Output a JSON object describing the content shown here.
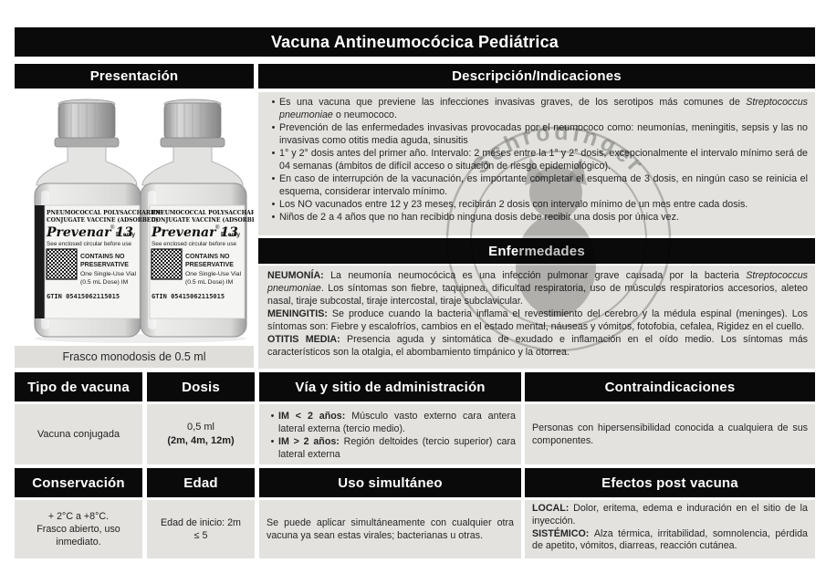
{
  "title": "Vacuna Antineumocócica Pediátrica",
  "presentation": {
    "header": "Presentación",
    "caption": "Frasco monodosis de 0.5 ml",
    "vial_label": {
      "line1": "PNEUMOCOCCAL POLYSACCHARIDE",
      "line2": "CONJUGATE VACCINE (ADSORBED)",
      "brand": "Prevenar 13",
      "reg": "®",
      "rx": "℞ only",
      "circular": "See enclosed circular before use",
      "contains1": "CONTAINS NO",
      "contains2": "PRESERVATIVE",
      "single_use": "One Single-Use Vial",
      "dose": "(0.5 mL Dose) IM",
      "gtin": "GTIN 05415062115015"
    }
  },
  "description": {
    "header": "Descripción/Indicaciones",
    "bullets": [
      [
        {
          "t": "Es una vacuna que previene las infecciones invasivas graves, de los serotipos más comunes de "
        },
        {
          "t": "Streptococcus pneumoniae",
          "i": true
        },
        {
          "t": " o neumococo."
        }
      ],
      [
        {
          "t": "Prevención de las enfermedades invasivas provocadas por el neumococo como: neumonías, meningitis, sepsis y las no invasivas como otitis media aguda, sinusitis"
        }
      ],
      [
        {
          "t": "1° y 2° dosis antes del primer año. Intervalo: 2 meses entre la 1° y 2° dosis, excepcionalmente el intervalo mínimo será de 04 semanas (ámbitos de difícil acceso o situación de riesgo epidemiológico)."
        }
      ],
      [
        {
          "t": "En caso de interrupción de la vacunación, es importante completar el esquema de 3 dosis, en ningún caso se reinicia el esquema, considerar intervalo mínimo."
        }
      ],
      [
        {
          "t": "Los NO vacunados entre 12 y 23 meses, recibirán 2 dosis con intervalo mínimo de un mes entre cada dosis."
        }
      ],
      [
        {
          "t": "Niños de 2 a 4 años que no han recibido ninguna dosis debe recibir una dosis por única vez."
        }
      ]
    ]
  },
  "diseases": {
    "header": "Enfermedades",
    "paragraphs": [
      [
        {
          "t": "NEUMONÍA: ",
          "b": true
        },
        {
          "t": "La neumonía neumocócica es una infección pulmonar grave causada por la bacteria "
        },
        {
          "t": "Streptococcus pneumoniae",
          "i": true
        },
        {
          "t": ". Los síntomas son fiebre, taquipnea, dificultad respiratoria, uso de músculos respiratorios accesorios, aleteo nasal, tiraje subcostal, tiraje intercostal, tiraje subclavicular."
        }
      ],
      [
        {
          "t": "MENINGITIS: ",
          "b": true
        },
        {
          "t": "Se produce cuando la bacteria inflama el revestimiento del cerebro y la médula espinal (meninges). Los síntomas son: Fiebre y escalofríos, cambios en el estado mental, náuseas y vómitos, fotofobia, cefalea, Rigidez en el cuello."
        }
      ],
      [
        {
          "t": "OTITIS MEDIA: ",
          "b": true
        },
        {
          "t": "Presencia aguda y sintomática de exudado e inflamación en el oído medio. Los síntomas más característicos son la otalgia, el abombamiento timpánico y la otorrea."
        }
      ]
    ]
  },
  "table1": {
    "headers": [
      "Tipo de vacuna",
      "Dosis",
      "Vía y sitio de administración",
      "Contraindicaciones"
    ],
    "tipo": "Vacuna conjugada",
    "dosis_line1": "0,5 ml",
    "dosis_line2": "(2m, 4m, 12m)",
    "via_bullets": [
      [
        {
          "t": "IM < 2 años: ",
          "b": true
        },
        {
          "t": "Músculo vasto externo cara antera lateral externa (tercio medio)."
        }
      ],
      [
        {
          "t": "IM > 2 años: ",
          "b": true
        },
        {
          "t": "Región deltoides (tercio superior) cara lateral externa"
        }
      ]
    ],
    "contra": "Personas con hipersensibilidad conocida a cualquiera de sus componentes."
  },
  "table2": {
    "headers": [
      "Conservación",
      "Edad",
      "Uso simultáneo",
      "Efectos post vacuna"
    ],
    "conservacion": [
      "+ 2°C a +8°C.",
      "Frasco abierto, uso",
      "inmediato."
    ],
    "edad": [
      "Edad de inicio: 2m",
      "≤ 5"
    ],
    "uso": "Se puede aplicar simultáneamente con cualquier otra vacuna ya sean estas virales; bacterianas u otras.",
    "efectos": [
      [
        {
          "t": "LOCAL: ",
          "b": true
        },
        {
          "t": "Dolor, eritema, edema e induración en el sitio de la inyección."
        }
      ],
      [
        {
          "t": "SISTÉMICO: ",
          "b": true
        },
        {
          "t": "Alza térmica, irritabilidad, somnolencia, pérdida de apetito, vómitos, diarreas, reacción cutánea."
        }
      ]
    ]
  },
  "watermark": {
    "arc_text": "Schrödinger"
  },
  "colors": {
    "header_bg": "#0a0a0a",
    "cell_bg": "#e3e2de",
    "caption_bg": "#dfdeda",
    "text": "#262626"
  }
}
